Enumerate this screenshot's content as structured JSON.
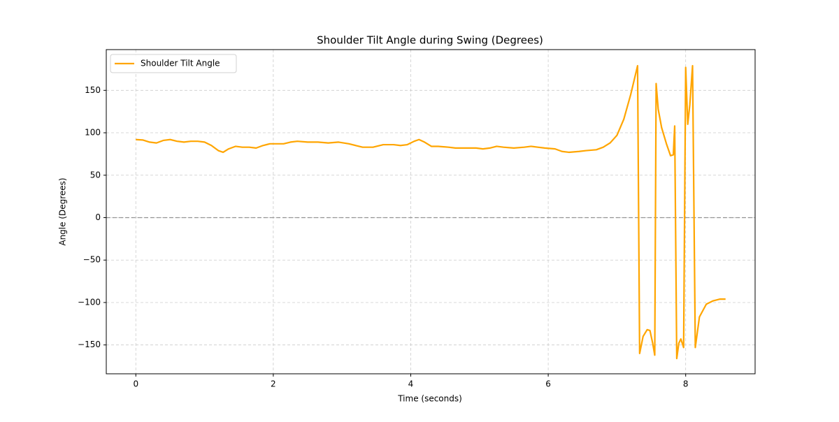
{
  "chart_data": {
    "type": "line",
    "title": "Shoulder Tilt Angle during Swing (Degrees)",
    "x_label": "Time (seconds)",
    "y_label": "Angle (Degrees)",
    "x": [
      0,
      0.1,
      0.2,
      0.3,
      0.4,
      0.5,
      0.6,
      0.7,
      0.8,
      0.9,
      1.0,
      1.1,
      1.2,
      1.27,
      1.35,
      1.45,
      1.55,
      1.65,
      1.75,
      1.85,
      1.95,
      2.05,
      2.15,
      2.25,
      2.35,
      2.5,
      2.65,
      2.8,
      2.95,
      3.1,
      3.2,
      3.3,
      3.45,
      3.6,
      3.75,
      3.85,
      3.95,
      4.05,
      4.12,
      4.2,
      4.3,
      4.4,
      4.55,
      4.65,
      4.8,
      4.95,
      5.05,
      5.15,
      5.25,
      5.35,
      5.5,
      5.65,
      5.75,
      5.85,
      5.95,
      6.1,
      6.2,
      6.3,
      6.45,
      6.55,
      6.7,
      6.8,
      6.9,
      7.0,
      7.1,
      7.2,
      7.3,
      7.33,
      7.38,
      7.44,
      7.48,
      7.52,
      7.55,
      7.57,
      7.6,
      7.65,
      7.72,
      7.78,
      7.82,
      7.84,
      7.87,
      7.9,
      7.93,
      7.95,
      7.97,
      8.0,
      8.03,
      8.06,
      8.1,
      8.14,
      8.2,
      8.3,
      8.4,
      8.5,
      8.58
    ],
    "series": [
      {
        "name": "Shoulder Tilt Angle",
        "color": "#ffa500",
        "values": [
          92,
          91.5,
          89,
          88,
          91,
          92,
          90,
          89,
          90,
          90,
          89,
          85,
          79,
          77,
          81,
          84,
          83,
          83,
          82,
          85,
          87,
          87,
          87,
          89,
          90,
          89,
          89,
          88,
          89,
          87,
          85,
          83,
          83,
          86,
          86,
          85,
          86,
          90,
          92,
          89,
          84,
          84,
          83,
          82,
          82,
          82,
          81,
          82,
          84,
          83,
          82,
          83,
          84,
          83,
          82,
          81,
          78,
          77,
          78,
          79,
          80,
          83,
          88,
          97,
          116,
          145,
          179,
          -160,
          -140,
          -132,
          -133,
          -148,
          -162,
          158,
          128,
          106,
          87,
          73,
          74,
          108,
          -166,
          -148,
          -143,
          -148,
          -153,
          177,
          110,
          133,
          179,
          -153,
          -117,
          -102,
          -98,
          -96,
          -96
        ]
      }
    ],
    "reference_line": 0,
    "xlim": [
      -0.43,
      9.01
    ],
    "ylim": [
      -184,
      198
    ],
    "xticks": [
      0,
      2,
      4,
      6,
      8
    ],
    "yticks": [
      {
        "value": -150,
        "label": "−150"
      },
      {
        "value": -100,
        "label": "−100"
      },
      {
        "value": -50,
        "label": "−50"
      },
      0,
      50,
      100,
      150
    ],
    "grid": true,
    "legend": "upper left"
  }
}
